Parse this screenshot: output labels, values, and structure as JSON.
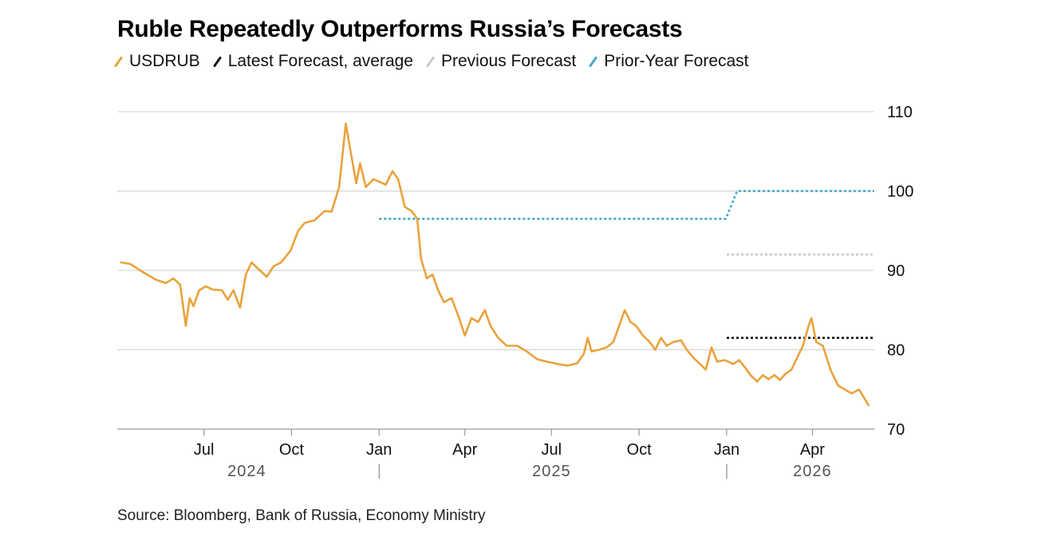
{
  "title": "Ruble Repeatedly Outperforms Russia’s Forecasts",
  "source": "Source: Bloomberg, Bank of Russia, Economy Ministry",
  "legend": [
    {
      "name": "USDRUB",
      "color": "#E8A33C"
    },
    {
      "name": "Latest Forecast, average",
      "color": "#111111"
    },
    {
      "name": "Previous Forecast",
      "color": "#C8C8C8"
    },
    {
      "name": "Prior-Year Forecast",
      "color": "#3FA7C9"
    }
  ],
  "colors": {
    "usdrub": "#E8A33C",
    "latest": "#111111",
    "previous": "#C8C8C8",
    "prior_year": "#3FA7C9",
    "grid": "#CFCFCF"
  },
  "chart_data": {
    "type": "line",
    "x_type": "date",
    "xlim": [
      "2024-04-01",
      "2026-06-05"
    ],
    "ylim": [
      70,
      110
    ],
    "y_ticks": [
      70,
      80,
      90,
      100,
      110
    ],
    "y_axis_position": "right",
    "grid": "horizontal",
    "x_ticks": [
      {
        "label": "Jul",
        "date": "2024-07-01"
      },
      {
        "label": "Oct",
        "date": "2024-10-01"
      },
      {
        "label": "Jan",
        "date": "2025-01-01"
      },
      {
        "label": "Apr",
        "date": "2025-04-01"
      },
      {
        "label": "Jul",
        "date": "2025-07-01"
      },
      {
        "label": "Oct",
        "date": "2025-10-01"
      },
      {
        "label": "Jan",
        "date": "2026-01-01"
      },
      {
        "label": "Apr",
        "date": "2026-04-01"
      }
    ],
    "year_labels": [
      {
        "label": "2024",
        "date": "2024-08-15"
      },
      {
        "label": "2025",
        "date": "2025-07-01"
      },
      {
        "label": "2026",
        "date": "2026-04-01"
      }
    ],
    "year_dividers": [
      "2025-01-01",
      "2026-01-01"
    ],
    "series": [
      {
        "name": "USDRUB",
        "style": "solid",
        "points": [
          [
            "2024-04-05",
            91.0
          ],
          [
            "2024-04-15",
            90.8
          ],
          [
            "2024-04-25",
            90.0
          ],
          [
            "2024-05-05",
            89.3
          ],
          [
            "2024-05-12",
            88.8
          ],
          [
            "2024-05-22",
            88.4
          ],
          [
            "2024-05-30",
            89.0
          ],
          [
            "2024-06-06",
            88.2
          ],
          [
            "2024-06-12",
            83.0
          ],
          [
            "2024-06-16",
            86.5
          ],
          [
            "2024-06-20",
            85.5
          ],
          [
            "2024-06-26",
            87.5
          ],
          [
            "2024-07-03",
            88.0
          ],
          [
            "2024-07-10",
            87.6
          ],
          [
            "2024-07-20",
            87.5
          ],
          [
            "2024-07-26",
            86.3
          ],
          [
            "2024-08-01",
            87.5
          ],
          [
            "2024-08-08",
            85.3
          ],
          [
            "2024-08-14",
            89.5
          ],
          [
            "2024-08-20",
            91.0
          ],
          [
            "2024-08-27",
            90.2
          ],
          [
            "2024-09-05",
            89.2
          ],
          [
            "2024-09-12",
            90.5
          ],
          [
            "2024-09-20",
            91.0
          ],
          [
            "2024-09-30",
            92.5
          ],
          [
            "2024-10-08",
            95.0
          ],
          [
            "2024-10-15",
            96.0
          ],
          [
            "2024-10-25",
            96.3
          ],
          [
            "2024-11-05",
            97.5
          ],
          [
            "2024-11-12",
            97.4
          ],
          [
            "2024-11-20",
            100.5
          ],
          [
            "2024-11-27",
            108.5
          ],
          [
            "2024-12-02",
            105.0
          ],
          [
            "2024-12-08",
            101.0
          ],
          [
            "2024-12-12",
            103.5
          ],
          [
            "2024-12-18",
            100.5
          ],
          [
            "2024-12-26",
            101.5
          ],
          [
            "2025-01-08",
            100.8
          ],
          [
            "2025-01-15",
            102.5
          ],
          [
            "2025-01-21",
            101.5
          ],
          [
            "2025-01-28",
            98.0
          ],
          [
            "2025-02-04",
            97.5
          ],
          [
            "2025-02-10",
            96.5
          ],
          [
            "2025-02-14",
            91.5
          ],
          [
            "2025-02-20",
            89.0
          ],
          [
            "2025-02-26",
            89.5
          ],
          [
            "2025-03-04",
            87.5
          ],
          [
            "2025-03-10",
            86.0
          ],
          [
            "2025-03-18",
            86.5
          ],
          [
            "2025-03-26",
            84.0
          ],
          [
            "2025-04-01",
            81.8
          ],
          [
            "2025-04-08",
            84.0
          ],
          [
            "2025-04-15",
            83.5
          ],
          [
            "2025-04-22",
            85.0
          ],
          [
            "2025-04-28",
            83.0
          ],
          [
            "2025-05-06",
            81.5
          ],
          [
            "2025-05-15",
            80.5
          ],
          [
            "2025-05-26",
            80.5
          ],
          [
            "2025-06-05",
            79.8
          ],
          [
            "2025-06-16",
            78.8
          ],
          [
            "2025-06-26",
            78.5
          ],
          [
            "2025-07-08",
            78.2
          ],
          [
            "2025-07-18",
            78.0
          ],
          [
            "2025-07-28",
            78.3
          ],
          [
            "2025-08-04",
            79.5
          ],
          [
            "2025-08-08",
            81.5
          ],
          [
            "2025-08-12",
            79.8
          ],
          [
            "2025-08-20",
            80.0
          ],
          [
            "2025-08-28",
            80.3
          ],
          [
            "2025-09-04",
            81.0
          ],
          [
            "2025-09-10",
            83.0
          ],
          [
            "2025-09-16",
            85.0
          ],
          [
            "2025-09-22",
            83.5
          ],
          [
            "2025-09-28",
            83.0
          ],
          [
            "2025-10-05",
            81.8
          ],
          [
            "2025-10-12",
            81.0
          ],
          [
            "2025-10-18",
            80.0
          ],
          [
            "2025-10-24",
            81.5
          ],
          [
            "2025-10-30",
            80.5
          ],
          [
            "2025-11-06",
            81.0
          ],
          [
            "2025-11-14",
            81.2
          ],
          [
            "2025-11-20",
            80.0
          ],
          [
            "2025-11-27",
            79.0
          ],
          [
            "2025-12-04",
            78.2
          ],
          [
            "2025-12-10",
            77.5
          ],
          [
            "2025-12-16",
            80.3
          ],
          [
            "2025-12-22",
            78.5
          ],
          [
            "2025-12-30",
            78.7
          ],
          [
            "2026-01-08",
            78.2
          ],
          [
            "2026-01-14",
            78.7
          ],
          [
            "2026-01-20",
            77.8
          ],
          [
            "2026-01-26",
            76.8
          ],
          [
            "2026-02-02",
            76.0
          ],
          [
            "2026-02-08",
            76.8
          ],
          [
            "2026-02-14",
            76.3
          ],
          [
            "2026-02-20",
            76.8
          ],
          [
            "2026-02-26",
            76.2
          ],
          [
            "2026-03-04",
            77.0
          ],
          [
            "2026-03-10",
            77.5
          ],
          [
            "2026-03-16",
            79.0
          ],
          [
            "2026-03-22",
            80.5
          ],
          [
            "2026-03-28",
            83.0
          ],
          [
            "2026-03-31",
            84.0
          ],
          [
            "2026-04-05",
            81.0
          ],
          [
            "2026-04-12",
            80.5
          ],
          [
            "2026-04-20",
            77.5
          ],
          [
            "2026-04-28",
            75.5
          ],
          [
            "2026-05-05",
            75.0
          ],
          [
            "2026-05-12",
            74.5
          ],
          [
            "2026-05-20",
            75.0
          ],
          [
            "2026-05-30",
            73.0
          ]
        ]
      },
      {
        "name": "Latest Forecast, average",
        "style": "dotted",
        "points": [
          [
            "2026-01-01",
            81.5
          ],
          [
            "2026-06-05",
            81.5
          ]
        ]
      },
      {
        "name": "Previous Forecast",
        "style": "dotted",
        "points": [
          [
            "2026-01-01",
            92.0
          ],
          [
            "2026-06-05",
            92.0
          ]
        ]
      },
      {
        "name": "Prior-Year Forecast",
        "style": "dotted",
        "points": [
          [
            "2025-01-01",
            96.5
          ],
          [
            "2025-12-31",
            96.5
          ],
          [
            "2026-01-12",
            100.0
          ],
          [
            "2026-06-05",
            100.0
          ]
        ]
      }
    ]
  }
}
